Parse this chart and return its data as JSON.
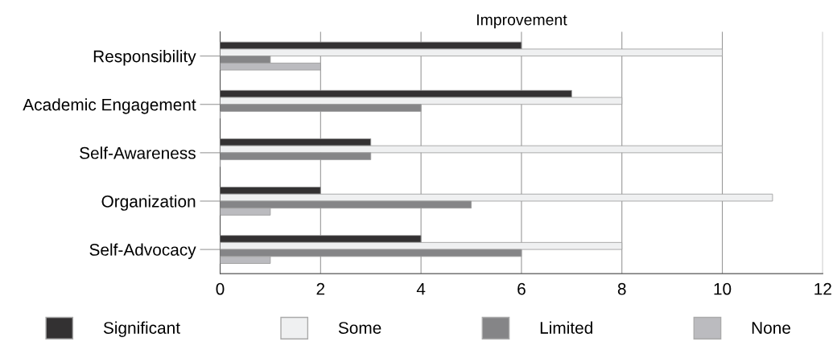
{
  "chart_data": {
    "type": "bar",
    "orientation": "horizontal",
    "title": "Improvement",
    "categories": [
      "Responsibility",
      "Academic Engagement",
      "Self-Awareness",
      "Organization",
      "Self-Advocacy"
    ],
    "series": [
      {
        "name": "Significant",
        "color": "#333132",
        "values": [
          6,
          7,
          3,
          2,
          4
        ]
      },
      {
        "name": "Some",
        "color": "#eff0f1",
        "values": [
          10,
          8,
          10,
          11,
          8
        ]
      },
      {
        "name": "Limited",
        "color": "#858587",
        "values": [
          1,
          4,
          3,
          5,
          6
        ]
      },
      {
        "name": "None",
        "color": "#bbbbbf",
        "values": [
          2,
          0,
          0,
          1,
          1
        ]
      }
    ],
    "xlim": [
      0,
      12
    ],
    "xticks": [
      0,
      2,
      4,
      6,
      8,
      10,
      12
    ],
    "grid": "x",
    "legend": "bottom"
  }
}
